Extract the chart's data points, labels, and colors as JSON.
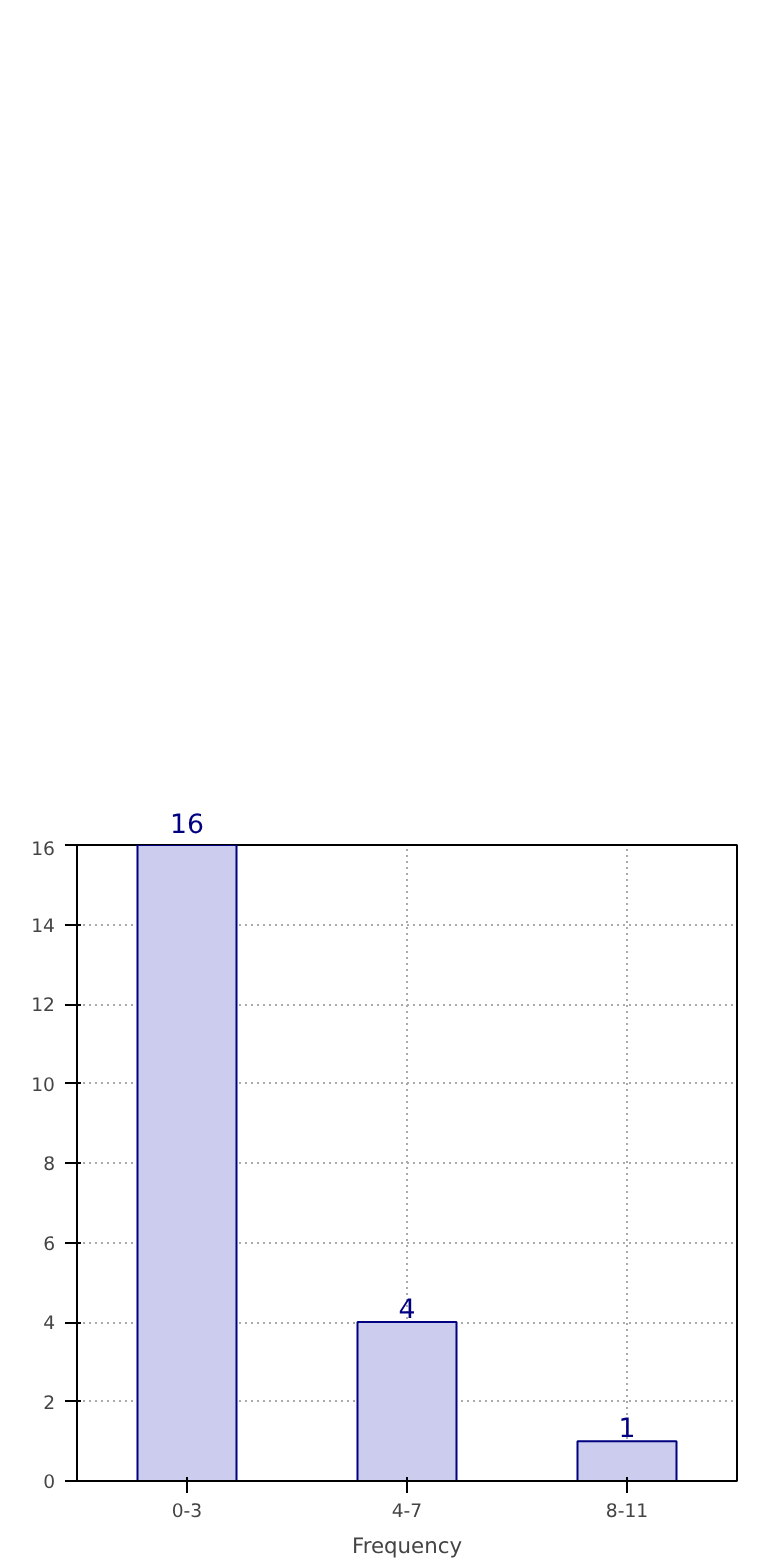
{
  "chart_data": {
    "type": "bar",
    "xlabel": "Frequency",
    "categories": [
      "0-3",
      "4-7",
      "8-11"
    ],
    "values": [
      16,
      4,
      1
    ],
    "color": "#ccccee",
    "ylim": [
      0,
      16
    ],
    "yticks": [
      0,
      2,
      4,
      6,
      8,
      10,
      12,
      14,
      16
    ],
    "grid": true,
    "data_labels": true
  }
}
